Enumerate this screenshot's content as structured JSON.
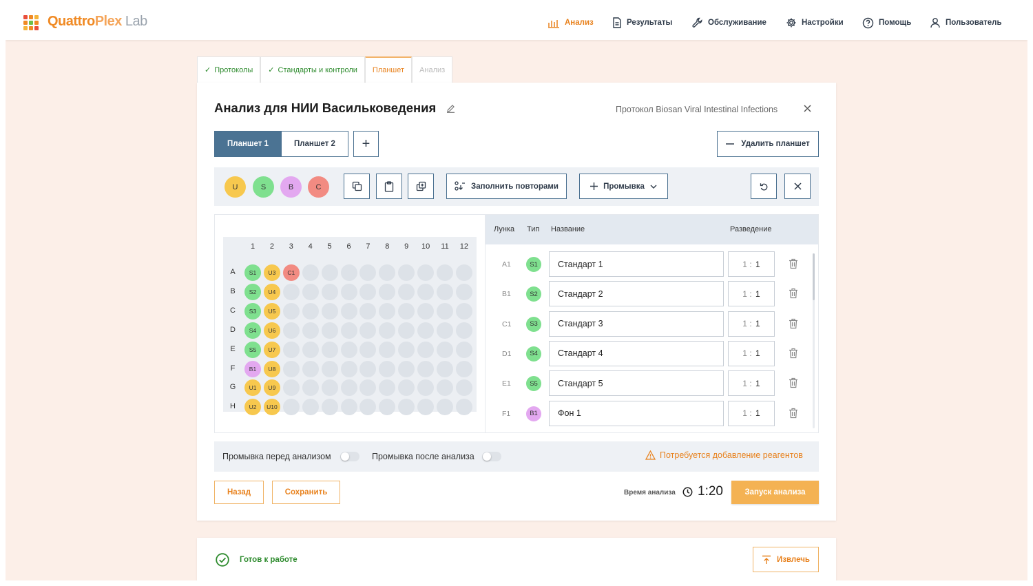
{
  "app": {
    "logo_main": "Quattro",
    "logo_mid": "Plex",
    "logo_suffix": " Lab"
  },
  "nav": [
    {
      "label": "Анализ",
      "icon": "analysis-icon",
      "active": true
    },
    {
      "label": "Результаты",
      "icon": "document-icon"
    },
    {
      "label": "Обслуживание",
      "icon": "wrench-icon"
    },
    {
      "label": "Настройки",
      "icon": "gear-icon"
    },
    {
      "label": "Помощь",
      "icon": "help-icon"
    },
    {
      "label": "Пользователь",
      "icon": "user-icon"
    }
  ],
  "steps": [
    {
      "label": "Протоколы",
      "state": "done"
    },
    {
      "label": "Стандарты и контроли",
      "state": "done"
    },
    {
      "label": "Планшет",
      "state": "active"
    },
    {
      "label": "Анализ",
      "state": "disabled"
    }
  ],
  "header": {
    "title": "Анализ для НИИ Васильковедения",
    "protocol": "Протокол Biosan Viral Intestinal Infections"
  },
  "plates": {
    "tabs": [
      "Планшет 1",
      "Планшет 2"
    ],
    "add_label": "+",
    "delete_label": "Удалить планшет"
  },
  "toolbar": {
    "types": [
      {
        "label": "U",
        "color": "#f7c84e"
      },
      {
        "label": "S",
        "color": "#7fe08f"
      },
      {
        "label": "B",
        "color": "#e3a8f0"
      },
      {
        "label": "C",
        "color": "#f28b82"
      }
    ],
    "fill_repeats_label": "Заполнить повторами",
    "wash_label": "Промывка"
  },
  "plate_grid": {
    "columns": [
      "1",
      "2",
      "3",
      "4",
      "5",
      "6",
      "7",
      "8",
      "9",
      "10",
      "11",
      "12"
    ],
    "rows": [
      "A",
      "B",
      "C",
      "D",
      "E",
      "F",
      "G",
      "H"
    ],
    "filled": {
      "A": [
        "S1",
        "U3",
        "C1"
      ],
      "B": [
        "S2",
        "U4"
      ],
      "C": [
        "S3",
        "U5"
      ],
      "D": [
        "S4",
        "U6"
      ],
      "E": [
        "S5",
        "U7"
      ],
      "F": [
        "B1",
        "U8"
      ],
      "G": [
        "U1",
        "U9"
      ],
      "H": [
        "U2",
        "U10"
      ]
    }
  },
  "table": {
    "headers": {
      "well": "Лунка",
      "type": "Тип",
      "name": "Название",
      "dilution": "Разведение"
    },
    "rows": [
      {
        "well": "A1",
        "type": "S1",
        "name": "Стандарт 1",
        "dil_a": "1",
        "dil_b": "1"
      },
      {
        "well": "B1",
        "type": "S2",
        "name": "Стандарт 2",
        "dil_a": "1",
        "dil_b": "1"
      },
      {
        "well": "C1",
        "type": "S3",
        "name": "Стандарт 3",
        "dil_a": "1",
        "dil_b": "1"
      },
      {
        "well": "D1",
        "type": "S4",
        "name": "Стандарт 4",
        "dil_a": "1",
        "dil_b": "1"
      },
      {
        "well": "E1",
        "type": "S5",
        "name": "Стандарт 5",
        "dil_a": "1",
        "dil_b": "1"
      },
      {
        "well": "F1",
        "type": "B1",
        "name": "Фон 1",
        "dil_a": "1",
        "dil_b": "1"
      }
    ]
  },
  "wash": {
    "before_label": "Промывка перед анализом",
    "after_label": "Промывка после анализа",
    "warning": "Потребуется добавление реагентов"
  },
  "footer": {
    "back_label": "Назад",
    "save_label": "Сохранить",
    "time_label": "Время анализа",
    "time_value": "1:20",
    "start_label": "Запуск анализа"
  },
  "status": {
    "text": "Готов к работе",
    "eject_label": "Извлечь"
  },
  "colors": {
    "accent": "#e8821e",
    "primary": "#4b7393",
    "success": "#2e8b2e"
  }
}
